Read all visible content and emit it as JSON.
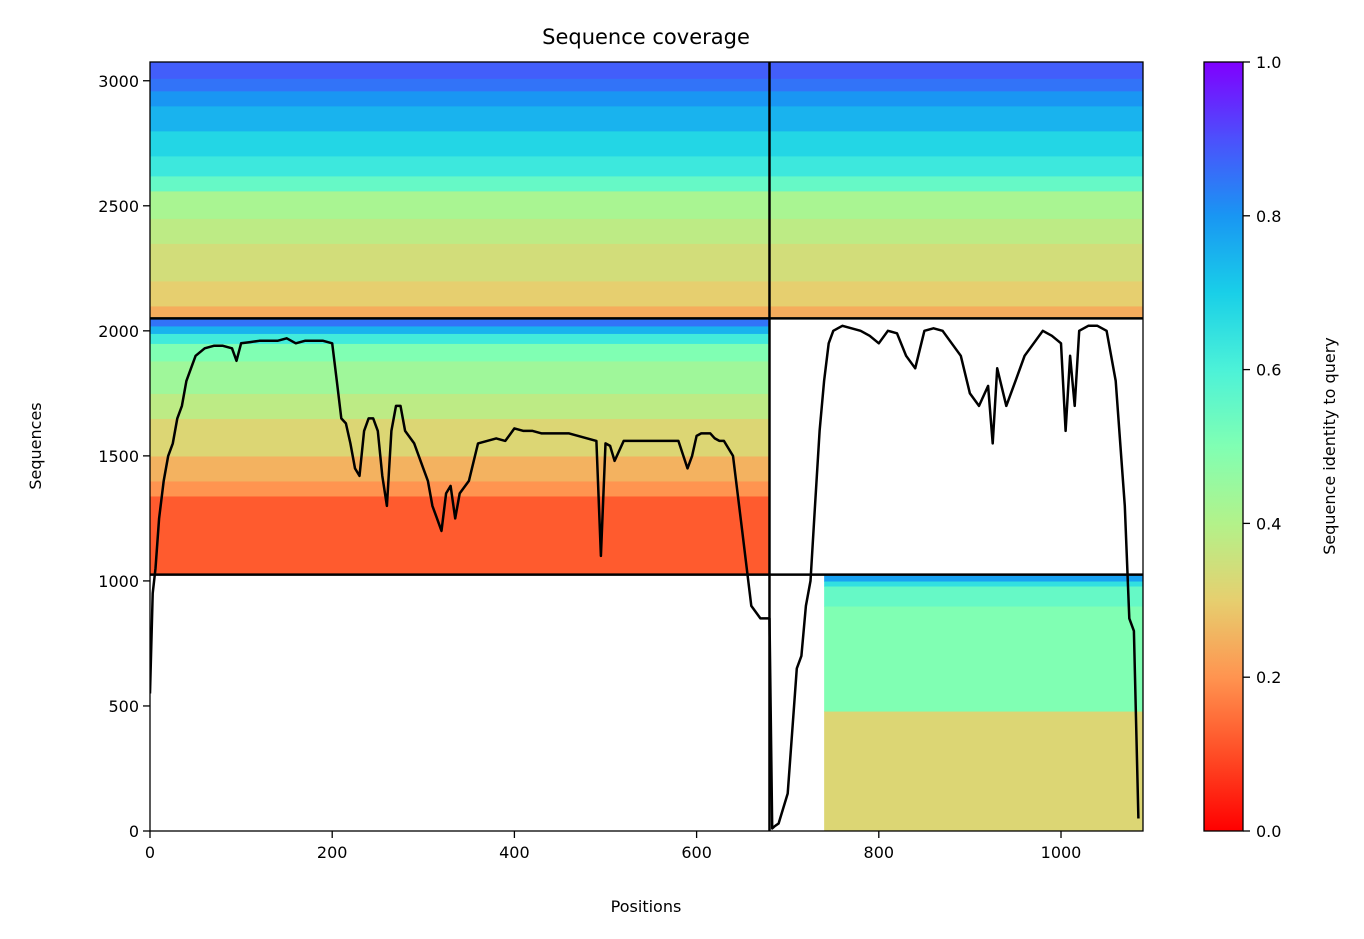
{
  "chart_data": {
    "type": "heatmap",
    "title": "Sequence coverage",
    "xlabel": "Positions",
    "ylabel": "Sequences",
    "xlim": [
      0,
      1090
    ],
    "ylim": [
      0,
      3075
    ],
    "xticks": [
      0,
      200,
      400,
      600,
      800,
      1000
    ],
    "yticks": [
      0,
      500,
      1000,
      1500,
      2000,
      2500,
      3000
    ],
    "colorbar": {
      "label": "Sequence identity to query",
      "range": [
        0,
        1
      ],
      "ticks": [
        "0.0",
        "0.2",
        "0.4",
        "0.6",
        "0.8",
        "1.0"
      ],
      "colormap": "rainbow_r"
    },
    "separators": {
      "vertical_x": [
        680
      ],
      "horizontal_y": [
        1025,
        2050
      ]
    },
    "blocks": [
      {
        "name": "chain-A-paired",
        "x": [
          0,
          680
        ],
        "y": [
          2050,
          3075
        ],
        "bands": [
          [
            2050,
            2100,
            0.24
          ],
          [
            2100,
            2200,
            0.3
          ],
          [
            2200,
            2350,
            0.34
          ],
          [
            2350,
            2450,
            0.38
          ],
          [
            2450,
            2560,
            0.42
          ],
          [
            2560,
            2620,
            0.55
          ],
          [
            2620,
            2700,
            0.63
          ],
          [
            2700,
            2800,
            0.68
          ],
          [
            2800,
            2900,
            0.75
          ],
          [
            2900,
            2960,
            0.8
          ],
          [
            2960,
            3010,
            0.85
          ],
          [
            3010,
            3075,
            0.88
          ]
        ]
      },
      {
        "name": "chain-B-paired",
        "x": [
          680,
          1090
        ],
        "y": [
          2050,
          3075
        ],
        "bands": [
          [
            2050,
            2100,
            0.24
          ],
          [
            2100,
            2200,
            0.3
          ],
          [
            2200,
            2350,
            0.34
          ],
          [
            2350,
            2450,
            0.38
          ],
          [
            2450,
            2560,
            0.42
          ],
          [
            2560,
            2620,
            0.55
          ],
          [
            2620,
            2700,
            0.63
          ],
          [
            2700,
            2800,
            0.68
          ],
          [
            2800,
            2900,
            0.75
          ],
          [
            2900,
            2960,
            0.8
          ],
          [
            2960,
            3010,
            0.85
          ],
          [
            3010,
            3075,
            0.88
          ]
        ]
      },
      {
        "name": "chain-A-unpaired",
        "x": [
          0,
          680
        ],
        "y": [
          1025,
          2050
        ],
        "bands": [
          [
            1025,
            1340,
            0.12
          ],
          [
            1340,
            1400,
            0.2
          ],
          [
            1400,
            1500,
            0.25
          ],
          [
            1500,
            1650,
            0.32
          ],
          [
            1650,
            1750,
            0.38
          ],
          [
            1750,
            1880,
            0.44
          ],
          [
            1880,
            1950,
            0.5
          ],
          [
            1950,
            1990,
            0.62
          ],
          [
            1990,
            2020,
            0.75
          ],
          [
            2020,
            2050,
            0.85
          ]
        ]
      },
      {
        "name": "chain-B-unpaired",
        "x": [
          740,
          1090
        ],
        "y": [
          0,
          1025
        ],
        "bands": [
          [
            0,
            480,
            0.32
          ],
          [
            480,
            900,
            0.5
          ],
          [
            900,
            980,
            0.55
          ],
          [
            980,
            1000,
            0.65
          ],
          [
            1000,
            1025,
            0.78
          ]
        ]
      }
    ],
    "coverage_line": {
      "x": [
        0,
        3,
        6,
        10,
        15,
        20,
        25,
        30,
        35,
        40,
        45,
        50,
        60,
        70,
        80,
        90,
        95,
        100,
        110,
        120,
        130,
        140,
        150,
        160,
        170,
        180,
        190,
        200,
        205,
        210,
        215,
        220,
        225,
        230,
        235,
        240,
        245,
        250,
        255,
        260,
        265,
        270,
        275,
        280,
        290,
        300,
        305,
        310,
        315,
        320,
        325,
        330,
        335,
        340,
        350,
        360,
        370,
        380,
        390,
        400,
        410,
        420,
        430,
        440,
        450,
        460,
        470,
        480,
        490,
        495,
        500,
        505,
        510,
        520,
        530,
        540,
        550,
        560,
        570,
        580,
        590,
        595,
        600,
        605,
        610,
        615,
        620,
        625,
        630,
        640,
        650,
        660,
        670,
        680,
        683,
        686,
        690,
        700,
        710,
        715,
        720,
        725,
        730,
        735,
        740,
        745,
        750,
        755,
        760,
        770,
        780,
        790,
        800,
        810,
        820,
        830,
        840,
        850,
        860,
        870,
        880,
        890,
        900,
        910,
        920,
        925,
        930,
        940,
        950,
        960,
        970,
        980,
        990,
        1000,
        1005,
        1010,
        1015,
        1020,
        1030,
        1040,
        1050,
        1060,
        1070,
        1075,
        1080,
        1085,
        1088
      ],
      "y": [
        550,
        950,
        1050,
        1250,
        1400,
        1500,
        1550,
        1650,
        1700,
        1800,
        1850,
        1900,
        1930,
        1940,
        1940,
        1930,
        1880,
        1950,
        1955,
        1960,
        1960,
        1960,
        1970,
        1950,
        1960,
        1960,
        1960,
        1950,
        1800,
        1650,
        1630,
        1550,
        1450,
        1420,
        1600,
        1650,
        1650,
        1600,
        1420,
        1300,
        1600,
        1700,
        1700,
        1600,
        1550,
        1450,
        1400,
        1300,
        1250,
        1200,
        1350,
        1380,
        1250,
        1350,
        1400,
        1550,
        1560,
        1570,
        1560,
        1610,
        1600,
        1600,
        1590,
        1590,
        1590,
        1590,
        1580,
        1570,
        1560,
        1100,
        1550,
        1540,
        1480,
        1560,
        1560,
        1560,
        1560,
        1560,
        1560,
        1560,
        1450,
        1500,
        1580,
        1590,
        1590,
        1590,
        1570,
        1560,
        1560,
        1500,
        1200,
        900,
        850,
        850,
        10,
        20,
        30,
        150,
        650,
        700,
        900,
        1000,
        1300,
        1600,
        1800,
        1950,
        2000,
        2010,
        2020,
        2010,
        2000,
        1980,
        1950,
        2000,
        1990,
        1900,
        1850,
        2000,
        2010,
        2000,
        1950,
        1900,
        1750,
        1700,
        1780,
        1550,
        1850,
        1700,
        1800,
        1900,
        1950,
        2000,
        1980,
        1950,
        1600,
        1900,
        1700,
        2000,
        2020,
        2020,
        2000,
        1800,
        1300,
        850,
        800,
        50
      ]
    }
  }
}
